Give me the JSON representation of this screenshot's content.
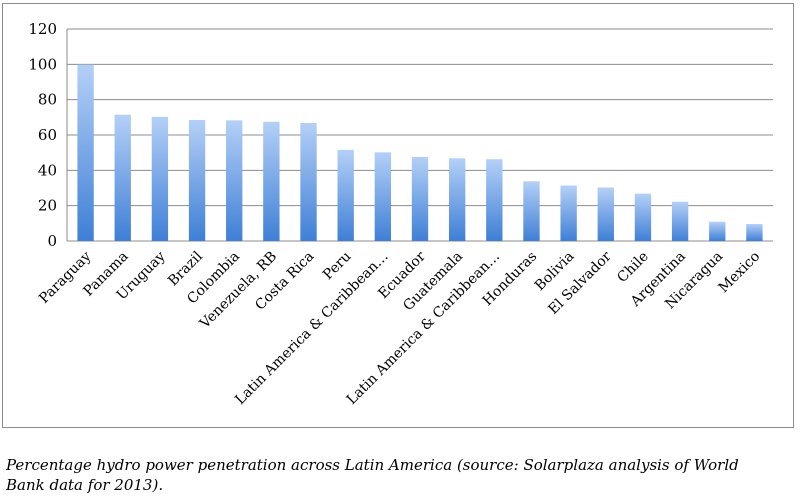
{
  "colors": {
    "bar_top": "#b4d0f7",
    "bar_bottom": "#3f7fd6",
    "grid": "#8c8c8c",
    "text": "#000000"
  },
  "chart_data": {
    "type": "bar",
    "categories": [
      "Paraguay",
      "Panama",
      "Uruguay",
      "Brazil",
      "Colombia",
      "Venezuela, RB",
      "Costa Rica",
      "Peru",
      "Latin America & Caribbean…",
      "Ecuador",
      "Guatemala",
      "Latin America & Caribbean…",
      "Honduras",
      "Bolivia",
      "El Salvador",
      "Chile",
      "Argentina",
      "Nicaragua",
      "Mexico"
    ],
    "values": [
      99.8,
      71.5,
      70.3,
      68.5,
      68.3,
      67.5,
      66.8,
      51.6,
      50.2,
      47.6,
      46.8,
      46.3,
      33.8,
      31.4,
      30.3,
      26.8,
      22.2,
      10.9,
      9.6
    ],
    "ylim": [
      0,
      120
    ],
    "yticks": [
      0,
      20,
      40,
      60,
      80,
      100,
      120
    ],
    "grid": true,
    "legend": "none"
  },
  "caption": "Percentage hydro power penetration across Latin America (source: Solarplaza analysis of World Bank data for 2013)."
}
